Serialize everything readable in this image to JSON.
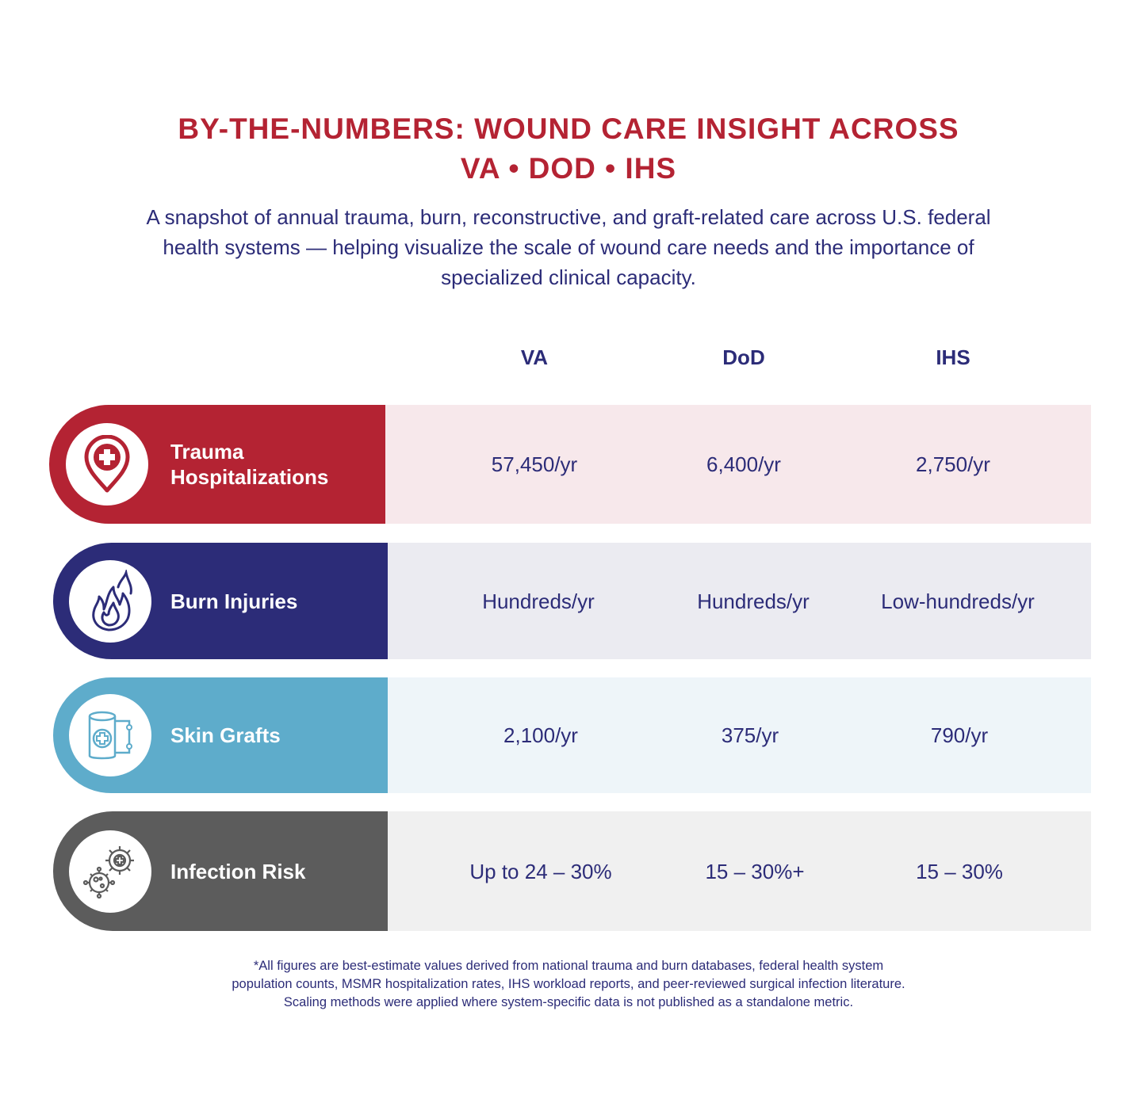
{
  "header": {
    "title_line1": "BY-THE-NUMBERS: WOUND CARE INSIGHT ACROSS",
    "title_line2": "VA • DOD • IHS",
    "subtitle": "A snapshot of annual trauma, burn, reconstructive, and graft-related care across U.S. federal health systems — helping visualize the scale of wound care needs and the importance of specialized clinical capacity."
  },
  "columns": [
    "VA",
    "DoD",
    "IHS"
  ],
  "rows": [
    {
      "label_line1": "Trauma",
      "label_line2": "Hospitalizations",
      "icon": "location-pin-medical-cross-icon",
      "accent": "#b42333",
      "band": "#f7e8eb",
      "values": [
        "57,450/yr",
        "6,400/yr",
        "2,750/yr"
      ]
    },
    {
      "label_line1": "Burn Injuries",
      "label_line2": "",
      "icon": "flame-icon",
      "accent": "#2c2c78",
      "band": "#ebebf1",
      "values": [
        "Hundreds/yr",
        "Hundreds/yr",
        "Low-hundreds/yr"
      ]
    },
    {
      "label_line1": "Skin Grafts",
      "label_line2": "",
      "icon": "bandage-roll-icon",
      "accent": "#5eaccb",
      "band": "#eef5f9",
      "values": [
        "2,100/yr",
        "375/yr",
        "790/yr"
      ]
    },
    {
      "label_line1": "Infection Risk",
      "label_line2": "",
      "icon": "virus-gear-icon",
      "accent": "#5c5c5c",
      "band": "#f0f0f0",
      "values": [
        "Up to 24 – 30%",
        "15 – 30%+",
        "15 – 30%"
      ]
    }
  ],
  "footnote": {
    "line1": "*All figures are best-estimate values derived from national trauma and burn databases, federal health system",
    "line2": "population counts, MSMR hospitalization rates, IHS workload reports, and peer-reviewed surgical infection literature.",
    "line3": "Scaling methods were applied where system-specific data is not published as a standalone metric."
  }
}
